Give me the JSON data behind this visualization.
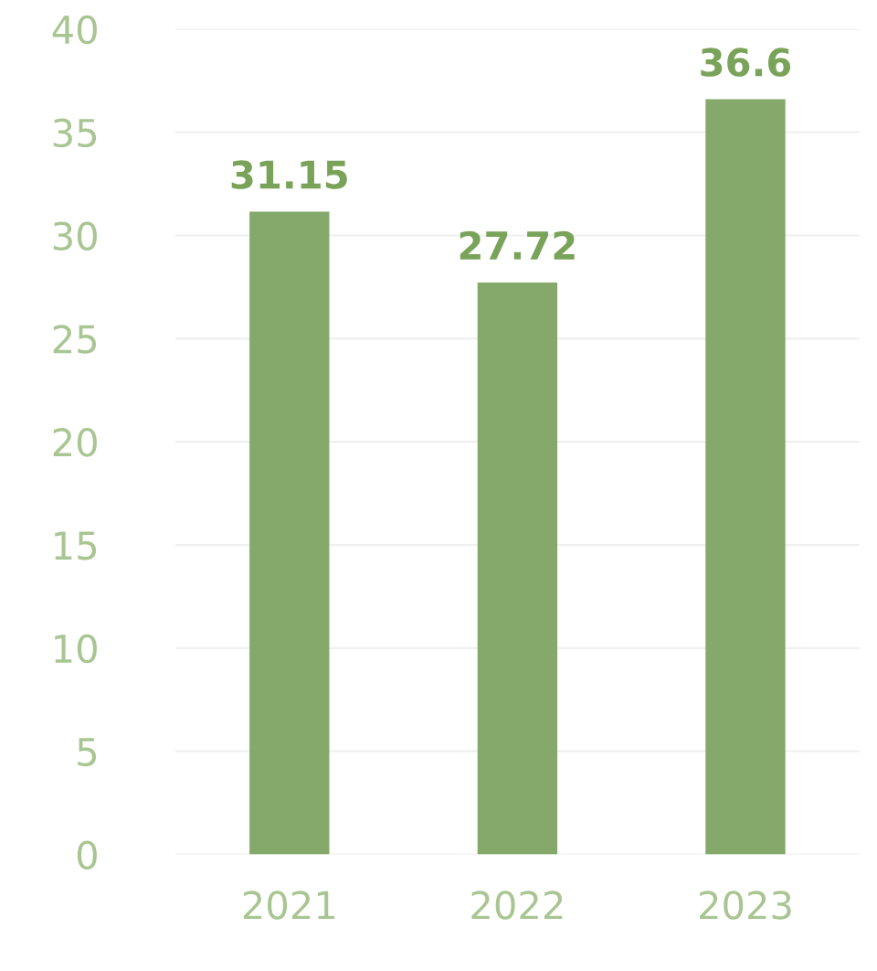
{
  "chart_data": {
    "type": "bar",
    "categories": [
      "2021",
      "2022",
      "2023"
    ],
    "values": [
      31.15,
      27.72,
      36.6
    ],
    "color": "#84a96a",
    "ylim": [
      0,
      40
    ],
    "yticks": [
      0,
      5,
      10,
      15,
      20,
      25,
      30,
      35,
      40
    ],
    "grid": "y",
    "data_labels": true
  }
}
